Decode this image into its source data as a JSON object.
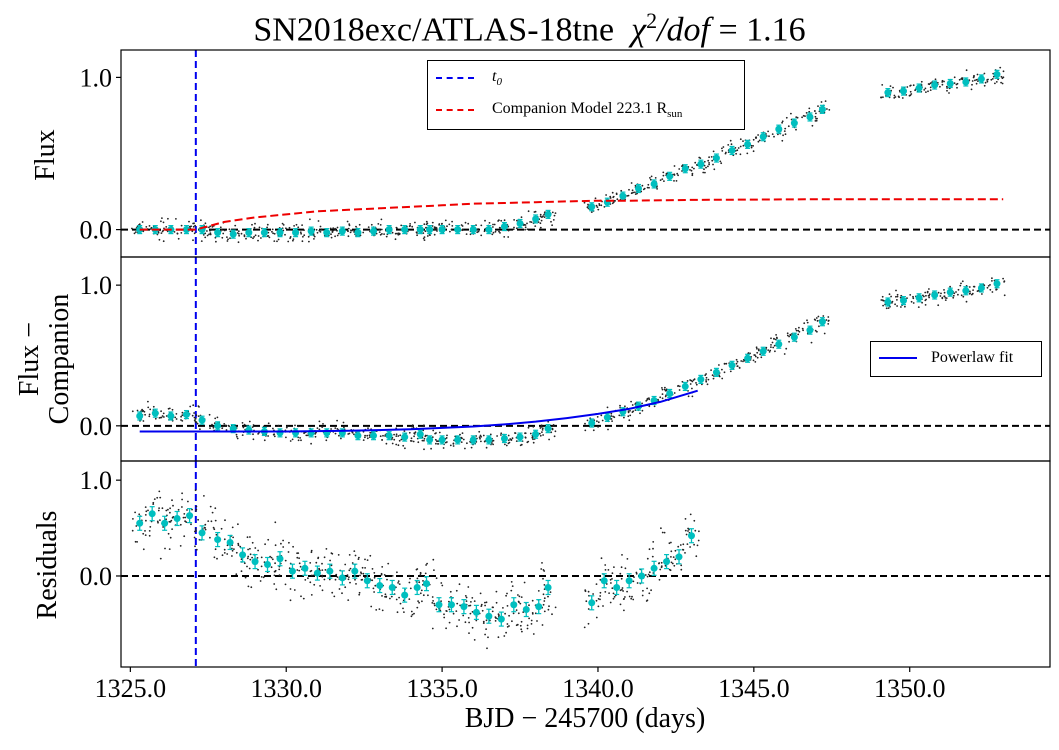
{
  "chart_data": {
    "type": "scatter",
    "title_prefix": "SN2018exc/ATLAS-18tne",
    "title_chi": "χ",
    "title_exp": "2",
    "title_dof": "/dof",
    "title_value": "= 1.16",
    "xlabel": "BJD − 245700 (days)",
    "xlim": [
      1324.7,
      1354.5
    ],
    "xticks": [
      1325.0,
      1330.0,
      1335.0,
      1340.0,
      1345.0,
      1350.0
    ],
    "xtick_labels": [
      "1325.0",
      "1330.0",
      "1335.0",
      "1340.0",
      "1345.0",
      "1350.0"
    ],
    "t0": 1327.1,
    "panels": [
      {
        "id": "flux",
        "ylabel_lines": [
          "Flux"
        ],
        "ylim": [
          -0.18,
          1.18
        ],
        "yticks": [
          0.0,
          1.0
        ],
        "ytick_labels": [
          "0.0",
          "1.0"
        ],
        "series": [
          {
            "name": "Flux",
            "values": [
              [
                1325.3,
                0.0
              ],
              [
                1325.8,
                0.0
              ],
              [
                1326.3,
                0.0
              ],
              [
                1326.8,
                0.0
              ],
              [
                1327.3,
                0.0
              ],
              [
                1327.8,
                -0.02
              ],
              [
                1328.3,
                -0.03
              ],
              [
                1328.8,
                -0.02
              ],
              [
                1329.3,
                -0.02
              ],
              [
                1329.8,
                -0.02
              ],
              [
                1330.3,
                -0.02
              ],
              [
                1330.8,
                -0.01
              ],
              [
                1331.3,
                -0.02
              ],
              [
                1331.8,
                -0.01
              ],
              [
                1332.3,
                -0.02
              ],
              [
                1332.8,
                -0.01
              ],
              [
                1333.3,
                0.0
              ],
              [
                1333.8,
                0.0
              ],
              [
                1334.3,
                0.0
              ],
              [
                1334.6,
                0.0
              ],
              [
                1335.0,
                0.0
              ],
              [
                1335.5,
                0.0
              ],
              [
                1336.0,
                0.0
              ],
              [
                1336.5,
                0.0
              ],
              [
                1337.0,
                0.02
              ],
              [
                1337.5,
                0.04
              ],
              [
                1338.0,
                0.07
              ],
              [
                1338.4,
                0.1
              ],
              [
                1339.8,
                0.15
              ],
              [
                1340.3,
                0.18
              ],
              [
                1340.8,
                0.22
              ],
              [
                1341.3,
                0.27
              ],
              [
                1341.8,
                0.3
              ],
              [
                1342.3,
                0.35
              ],
              [
                1342.8,
                0.4
              ],
              [
                1343.3,
                0.43
              ],
              [
                1343.8,
                0.47
              ],
              [
                1344.3,
                0.52
              ],
              [
                1344.8,
                0.56
              ],
              [
                1345.3,
                0.61
              ],
              [
                1345.8,
                0.66
              ],
              [
                1346.3,
                0.7
              ],
              [
                1346.8,
                0.74
              ],
              [
                1347.2,
                0.79
              ],
              [
                1349.3,
                0.9
              ],
              [
                1349.8,
                0.91
              ],
              [
                1350.3,
                0.93
              ],
              [
                1350.8,
                0.95
              ],
              [
                1351.3,
                0.96
              ],
              [
                1351.8,
                0.97
              ],
              [
                1352.3,
                0.99
              ],
              [
                1352.8,
                1.02
              ]
            ]
          },
          {
            "name": "t0",
            "type": "vline",
            "x": 1327.1
          },
          {
            "name": "Companion Model 223.1 R_sun",
            "values": [
              [
                1325.3,
                0.0
              ],
              [
                1327.1,
                0.0
              ],
              [
                1328,
                0.05
              ],
              [
                1329,
                0.08
              ],
              [
                1330,
                0.1
              ],
              [
                1331,
                0.12
              ],
              [
                1332,
                0.13
              ],
              [
                1333,
                0.14
              ],
              [
                1334,
                0.15
              ],
              [
                1335,
                0.16
              ],
              [
                1336,
                0.17
              ],
              [
                1337,
                0.175
              ],
              [
                1338,
                0.18
              ],
              [
                1339,
                0.185
              ],
              [
                1340,
                0.19
              ],
              [
                1341,
                0.19
              ],
              [
                1343,
                0.195
              ],
              [
                1345,
                0.197
              ],
              [
                1347,
                0.2
              ],
              [
                1350,
                0.2
              ],
              [
                1353,
                0.2
              ]
            ]
          }
        ]
      },
      {
        "id": "flux-minus-companion",
        "ylabel_lines": [
          "Flux −",
          "Companion"
        ],
        "ylim": [
          -0.25,
          1.2
        ],
        "yticks": [
          0.0,
          1.0
        ],
        "ytick_labels": [
          "0.0",
          "1.0"
        ],
        "series": [
          {
            "name": "Flux − Companion",
            "values": [
              [
                1325.3,
                0.07
              ],
              [
                1325.8,
                0.09
              ],
              [
                1326.3,
                0.07
              ],
              [
                1326.8,
                0.08
              ],
              [
                1327.3,
                0.04
              ],
              [
                1327.8,
                0.0
              ],
              [
                1328.3,
                -0.02
              ],
              [
                1328.8,
                -0.03
              ],
              [
                1329.3,
                -0.04
              ],
              [
                1329.8,
                -0.05
              ],
              [
                1330.3,
                -0.05
              ],
              [
                1330.8,
                -0.05
              ],
              [
                1331.3,
                -0.05
              ],
              [
                1331.8,
                -0.05
              ],
              [
                1332.3,
                -0.07
              ],
              [
                1332.8,
                -0.07
              ],
              [
                1333.3,
                -0.07
              ],
              [
                1333.8,
                -0.08
              ],
              [
                1334.3,
                -0.06
              ],
              [
                1334.6,
                -0.1
              ],
              [
                1335.0,
                -0.1
              ],
              [
                1335.5,
                -0.1
              ],
              [
                1336.0,
                -0.1
              ],
              [
                1336.5,
                -0.1
              ],
              [
                1337.0,
                -0.09
              ],
              [
                1337.5,
                -0.08
              ],
              [
                1338.0,
                -0.06
              ],
              [
                1338.4,
                -0.02
              ],
              [
                1339.8,
                0.02
              ],
              [
                1340.3,
                0.06
              ],
              [
                1340.8,
                0.1
              ],
              [
                1341.3,
                0.14
              ],
              [
                1341.8,
                0.18
              ],
              [
                1342.3,
                0.23
              ],
              [
                1342.8,
                0.28
              ],
              [
                1343.3,
                0.33
              ],
              [
                1343.8,
                0.38
              ],
              [
                1344.3,
                0.43
              ],
              [
                1344.8,
                0.48
              ],
              [
                1345.3,
                0.53
              ],
              [
                1345.8,
                0.58
              ],
              [
                1346.3,
                0.63
              ],
              [
                1346.8,
                0.68
              ],
              [
                1347.2,
                0.74
              ],
              [
                1349.3,
                0.88
              ],
              [
                1349.8,
                0.89
              ],
              [
                1350.3,
                0.91
              ],
              [
                1350.8,
                0.93
              ],
              [
                1351.3,
                0.95
              ],
              [
                1351.8,
                0.96
              ],
              [
                1352.3,
                0.98
              ],
              [
                1352.8,
                1.01
              ]
            ]
          },
          {
            "name": "Powerlaw fit",
            "values": [
              [
                1325.3,
                -0.04
              ],
              [
                1330,
                -0.04
              ],
              [
                1332,
                -0.035
              ],
              [
                1334,
                -0.025
              ],
              [
                1336,
                -0.005
              ],
              [
                1337,
                0.01
              ],
              [
                1338,
                0.03
              ],
              [
                1339,
                0.055
              ],
              [
                1340,
                0.085
              ],
              [
                1341,
                0.12
              ],
              [
                1342,
                0.17
              ],
              [
                1343.2,
                0.25
              ]
            ]
          }
        ]
      },
      {
        "id": "residuals",
        "ylabel_lines": [
          "Residuals"
        ],
        "ylim": [
          -0.95,
          1.2
        ],
        "yticks": [
          0.0,
          1.0
        ],
        "ytick_labels": [
          "0.0",
          "1.0"
        ],
        "series": [
          {
            "name": "Residuals",
            "values": [
              [
                1325.3,
                0.55
              ],
              [
                1325.7,
                0.65
              ],
              [
                1326.1,
                0.55
              ],
              [
                1326.5,
                0.6
              ],
              [
                1326.9,
                0.63
              ],
              [
                1327.3,
                0.45
              ],
              [
                1327.8,
                0.38
              ],
              [
                1328.2,
                0.35
              ],
              [
                1328.6,
                0.22
              ],
              [
                1329.0,
                0.15
              ],
              [
                1329.4,
                0.12
              ],
              [
                1329.8,
                0.18
              ],
              [
                1330.2,
                0.05
              ],
              [
                1330.6,
                0.08
              ],
              [
                1331.0,
                0.03
              ],
              [
                1331.4,
                0.05
              ],
              [
                1331.8,
                -0.02
              ],
              [
                1332.2,
                0.05
              ],
              [
                1332.6,
                -0.05
              ],
              [
                1333.0,
                -0.1
              ],
              [
                1333.4,
                -0.12
              ],
              [
                1333.8,
                -0.2
              ],
              [
                1334.2,
                -0.12
              ],
              [
                1334.5,
                -0.08
              ],
              [
                1334.9,
                -0.3
              ],
              [
                1335.3,
                -0.3
              ],
              [
                1335.7,
                -0.32
              ],
              [
                1336.1,
                -0.38
              ],
              [
                1336.5,
                -0.42
              ],
              [
                1336.9,
                -0.45
              ],
              [
                1337.3,
                -0.3
              ],
              [
                1337.7,
                -0.35
              ],
              [
                1338.1,
                -0.32
              ],
              [
                1338.4,
                -0.12
              ],
              [
                1339.8,
                -0.28
              ],
              [
                1340.2,
                -0.05
              ],
              [
                1340.6,
                -0.12
              ],
              [
                1341.0,
                -0.05
              ],
              [
                1341.4,
                0.0
              ],
              [
                1341.8,
                0.08
              ],
              [
                1342.2,
                0.15
              ],
              [
                1342.6,
                0.2
              ],
              [
                1343.0,
                0.42
              ]
            ]
          }
        ]
      }
    ],
    "legends": [
      {
        "panel": "flux",
        "location": "upper-center",
        "entries": [
          {
            "label_main": "t",
            "label_sub": "0",
            "style": "dashed",
            "color": "#0000ee"
          },
          {
            "label_main": "Companion Model  223.1  R",
            "label_sub": "sun",
            "style": "dashed",
            "color": "#ee0000"
          }
        ]
      },
      {
        "panel": "flux-minus-companion",
        "location": "center-right",
        "entries": [
          {
            "label_main": "Powerlaw fit",
            "label_sub": "",
            "style": "solid",
            "color": "#0000ee"
          }
        ]
      }
    ],
    "colors": {
      "binned_markers": "#00bfbf",
      "raw_points": "#222222",
      "companion_model": "#ee0000",
      "powerlaw_fit": "#0000ee",
      "t0_line": "#0000ee",
      "zero_line": "#000000"
    }
  }
}
